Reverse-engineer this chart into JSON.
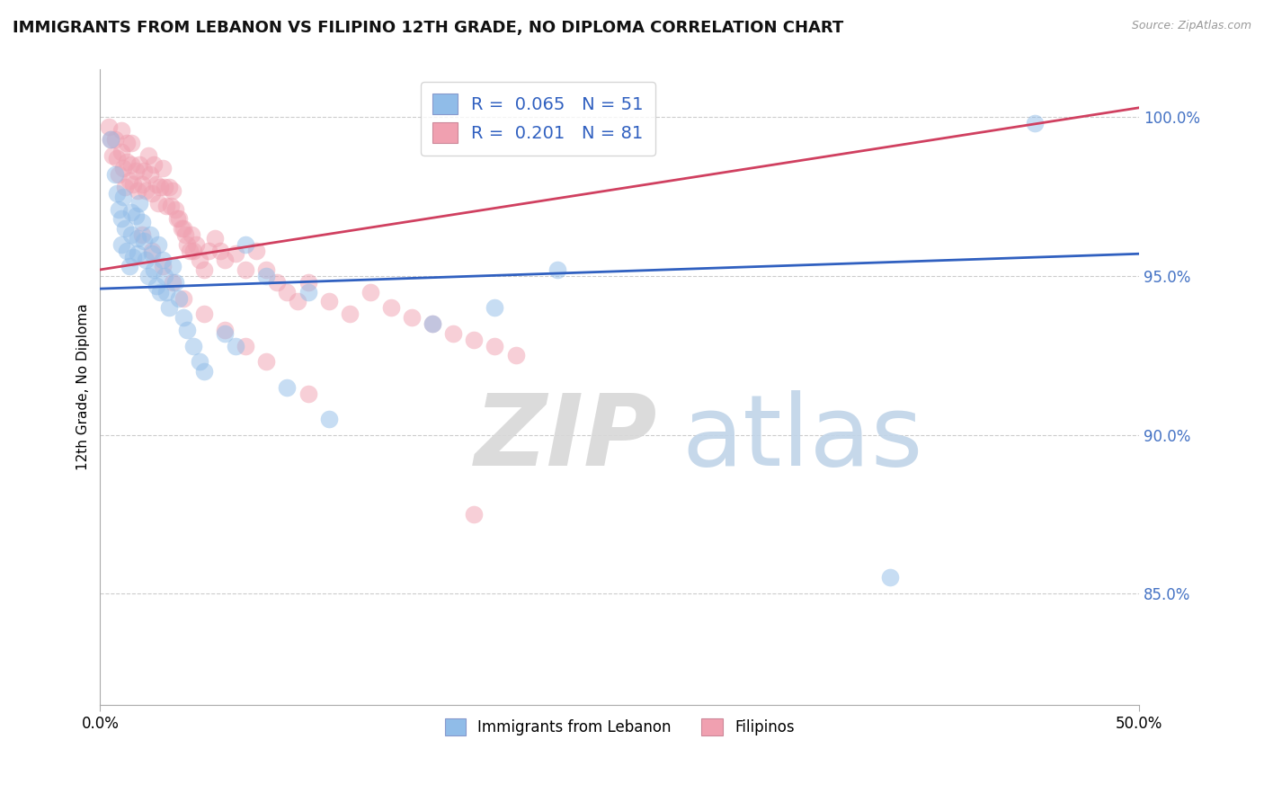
{
  "title": "IMMIGRANTS FROM LEBANON VS FILIPINO 12TH GRADE, NO DIPLOMA CORRELATION CHART",
  "source": "Source: ZipAtlas.com",
  "ylabel": "12th Grade, No Diploma",
  "yticks": [
    "85.0%",
    "90.0%",
    "95.0%",
    "100.0%"
  ],
  "ytick_vals": [
    0.85,
    0.9,
    0.95,
    1.0
  ],
  "xlim": [
    0.0,
    0.5
  ],
  "ylim": [
    0.815,
    1.015
  ],
  "legend_labels": [
    "Immigrants from Lebanon",
    "Filipinos"
  ],
  "blue_color": "#90bce8",
  "pink_color": "#f0a0b0",
  "blue_line_color": "#3060c0",
  "pink_line_color": "#d04060",
  "blue_R": 0.065,
  "blue_N": 51,
  "pink_R": 0.201,
  "pink_N": 81,
  "blue_line_y0": 0.946,
  "blue_line_y1": 0.957,
  "pink_line_y0": 0.952,
  "pink_line_y1": 1.003,
  "blue_points_x": [
    0.005,
    0.007,
    0.008,
    0.009,
    0.01,
    0.01,
    0.011,
    0.012,
    0.013,
    0.014,
    0.015,
    0.015,
    0.016,
    0.017,
    0.018,
    0.018,
    0.019,
    0.02,
    0.021,
    0.022,
    0.023,
    0.024,
    0.025,
    0.026,
    0.027,
    0.028,
    0.029,
    0.03,
    0.031,
    0.032,
    0.033,
    0.035,
    0.036,
    0.038,
    0.04,
    0.042,
    0.045,
    0.048,
    0.05,
    0.06,
    0.065,
    0.07,
    0.08,
    0.09,
    0.1,
    0.11,
    0.16,
    0.19,
    0.22,
    0.38,
    0.45
  ],
  "blue_points_y": [
    0.993,
    0.982,
    0.976,
    0.971,
    0.968,
    0.96,
    0.975,
    0.965,
    0.958,
    0.953,
    0.97,
    0.963,
    0.956,
    0.969,
    0.962,
    0.957,
    0.973,
    0.967,
    0.961,
    0.955,
    0.95,
    0.963,
    0.957,
    0.952,
    0.947,
    0.96,
    0.945,
    0.955,
    0.95,
    0.945,
    0.94,
    0.953,
    0.948,
    0.943,
    0.937,
    0.933,
    0.928,
    0.923,
    0.92,
    0.932,
    0.928,
    0.96,
    0.95,
    0.915,
    0.945,
    0.905,
    0.935,
    0.94,
    0.952,
    0.855,
    0.998
  ],
  "pink_points_x": [
    0.004,
    0.005,
    0.006,
    0.007,
    0.008,
    0.009,
    0.01,
    0.01,
    0.011,
    0.012,
    0.013,
    0.013,
    0.014,
    0.015,
    0.015,
    0.016,
    0.017,
    0.018,
    0.019,
    0.02,
    0.021,
    0.022,
    0.023,
    0.024,
    0.025,
    0.026,
    0.027,
    0.028,
    0.029,
    0.03,
    0.031,
    0.032,
    0.033,
    0.034,
    0.035,
    0.036,
    0.037,
    0.038,
    0.039,
    0.04,
    0.041,
    0.042,
    0.043,
    0.044,
    0.045,
    0.046,
    0.048,
    0.05,
    0.052,
    0.055,
    0.058,
    0.06,
    0.065,
    0.07,
    0.075,
    0.08,
    0.085,
    0.09,
    0.095,
    0.1,
    0.11,
    0.12,
    0.13,
    0.14,
    0.15,
    0.16,
    0.17,
    0.18,
    0.19,
    0.2,
    0.02,
    0.025,
    0.03,
    0.035,
    0.04,
    0.05,
    0.06,
    0.07,
    0.08,
    0.1,
    0.18
  ],
  "pink_points_y": [
    0.997,
    0.993,
    0.988,
    0.993,
    0.987,
    0.982,
    0.996,
    0.989,
    0.984,
    0.978,
    0.992,
    0.986,
    0.98,
    0.992,
    0.985,
    0.979,
    0.983,
    0.977,
    0.985,
    0.979,
    0.983,
    0.977,
    0.988,
    0.982,
    0.976,
    0.985,
    0.979,
    0.973,
    0.978,
    0.984,
    0.978,
    0.972,
    0.978,
    0.972,
    0.977,
    0.971,
    0.968,
    0.968,
    0.965,
    0.965,
    0.963,
    0.96,
    0.958,
    0.963,
    0.958,
    0.96,
    0.955,
    0.952,
    0.958,
    0.962,
    0.958,
    0.955,
    0.957,
    0.952,
    0.958,
    0.952,
    0.948,
    0.945,
    0.942,
    0.948,
    0.942,
    0.938,
    0.945,
    0.94,
    0.937,
    0.935,
    0.932,
    0.93,
    0.928,
    0.925,
    0.963,
    0.958,
    0.953,
    0.948,
    0.943,
    0.938,
    0.933,
    0.928,
    0.923,
    0.913,
    0.875
  ]
}
